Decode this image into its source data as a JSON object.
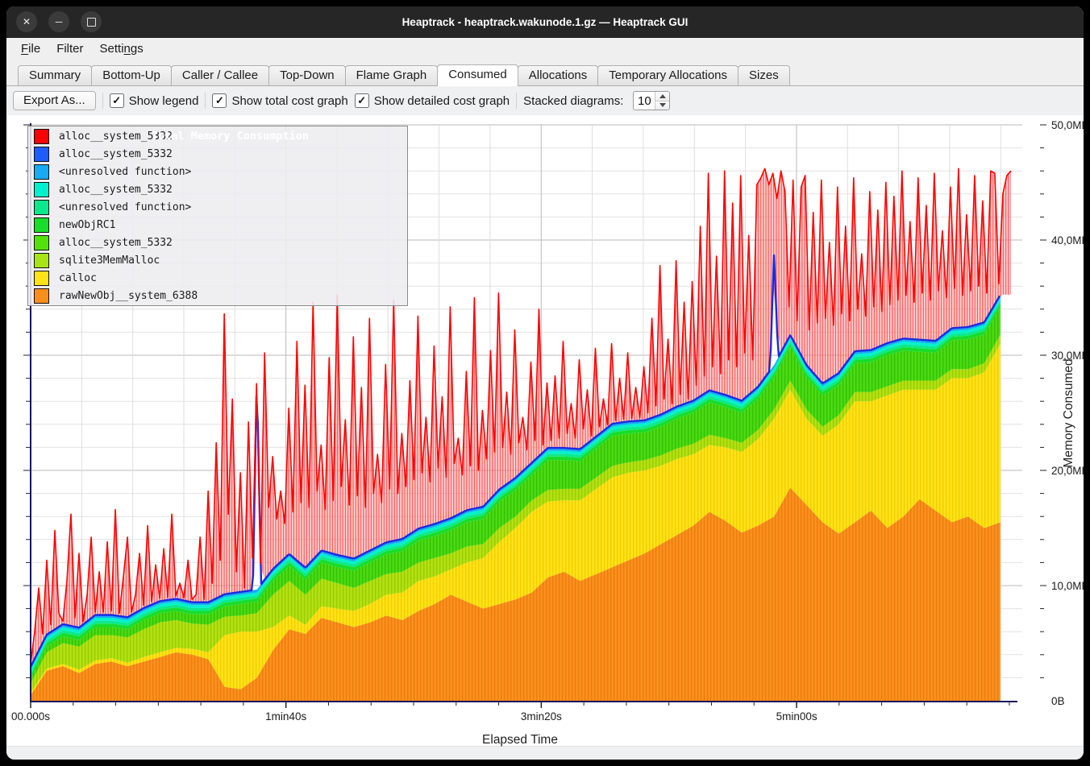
{
  "window": {
    "title": "Heaptrack - heaptrack.wakunode.1.gz — Heaptrack GUI",
    "controls": {
      "close": "✕",
      "minimize": "─",
      "maximize": ""
    }
  },
  "menu": {
    "items": [
      {
        "label": "File",
        "accel": 0
      },
      {
        "label": "Filter",
        "accel": -1
      },
      {
        "label": "Settings",
        "accel": 5
      }
    ]
  },
  "tabs": {
    "active": "Consumed",
    "items": [
      {
        "label": "Summary"
      },
      {
        "label": "Bottom-Up"
      },
      {
        "label": "Caller / Callee"
      },
      {
        "label": "Top-Down"
      },
      {
        "label": "Flame Graph"
      },
      {
        "label": "Consumed"
      },
      {
        "label": "Allocations"
      },
      {
        "label": "Temporary Allocations"
      },
      {
        "label": "Sizes"
      }
    ]
  },
  "toolbar": {
    "export_label": "Export As...",
    "checkboxes": [
      {
        "label": "Show legend",
        "checked": true
      },
      {
        "label": "Show total cost graph",
        "checked": true
      },
      {
        "label": "Show detailed cost graph",
        "checked": true
      }
    ],
    "stacked_label": "Stacked diagrams:",
    "stacked_value": "10"
  },
  "chart_data": {
    "type": "area",
    "xlabel": "Elapsed Time",
    "ylabel": "Memory Consumed",
    "x_max_s": 385,
    "y_max_mb": 50,
    "grid": true,
    "legend_position": "top-left",
    "x_ticks": [
      {
        "t": 0,
        "label": "00.000s"
      },
      {
        "t": 100,
        "label": "1min40s"
      },
      {
        "t": 200,
        "label": "3min20s"
      },
      {
        "t": 300,
        "label": "5min00s"
      }
    ],
    "y_ticks": [
      {
        "mb": 0,
        "label": "0B"
      },
      {
        "mb": 10,
        "label": "10,0MB"
      },
      {
        "mb": 20,
        "label": "20,0MB"
      },
      {
        "mb": 30,
        "label": "30,0MB"
      },
      {
        "mb": 40,
        "label": "40,0MB"
      },
      {
        "mb": 50,
        "label": "50,0MB"
      }
    ],
    "legend": [
      {
        "label": "Total Memory Consumption",
        "color": "#ff0000",
        "title": true
      },
      {
        "label": "alloc__system_5332",
        "color": "#1402e0"
      },
      {
        "label": "alloc__system_5332",
        "color": "#1e5cff"
      },
      {
        "label": "<unresolved function>",
        "color": "#17aaf5"
      },
      {
        "label": "alloc__system_5332",
        "color": "#00f2cc"
      },
      {
        "label": "<unresolved function>",
        "color": "#0ce98c"
      },
      {
        "label": "newObjRC1",
        "color": "#17dd2b"
      },
      {
        "label": "alloc__system_5332",
        "color": "#52e20b"
      },
      {
        "label": "sqlite3MemMalloc",
        "color": "#a8e414"
      },
      {
        "label": "calloc",
        "color": "#ffe316"
      },
      {
        "label": "rawNewObj__system_6388",
        "color": "#fb8e1a"
      }
    ],
    "stack": {
      "sample_interval_s": 6.33,
      "bands": [
        {
          "name": "rawNewObj__system_6388",
          "color": "#fb8e1a",
          "pattern": "horange",
          "values_mb": [
            0.5,
            2.6,
            3.0,
            2.4,
            3.2,
            3.4,
            3.0,
            3.4,
            3.8,
            4.2,
            4.0,
            3.6,
            1.2,
            1.0,
            2.0,
            4.4,
            6.2,
            5.8,
            7.2,
            6.8,
            6.4,
            6.8,
            7.4,
            7.0,
            7.8,
            8.4,
            9.2,
            8.6,
            8.0,
            8.4,
            8.8,
            9.4,
            10.7,
            11.2,
            10.4,
            11.0,
            11.6,
            12.2,
            12.8,
            13.6,
            14.4,
            15.2,
            16.4,
            15.6,
            14.6,
            15.2,
            16.0,
            18.5,
            17.0,
            15.5,
            14.5,
            15.5,
            16.5,
            15.0,
            16.0,
            17.5,
            16.5,
            15.5,
            16.0,
            15.0,
            15.5
          ]
        },
        {
          "name": "calloc",
          "color": "#ffe316",
          "pattern": "hyellow",
          "values_mb": [
            0.2,
            0.2,
            0.2,
            0.3,
            0.3,
            0.3,
            0.3,
            0.4,
            0.4,
            0.4,
            0.5,
            0.6,
            4.5,
            5.0,
            4.0,
            2.0,
            1.2,
            0.8,
            1.0,
            1.2,
            1.4,
            1.6,
            1.8,
            2.4,
            2.6,
            2.4,
            2.2,
            3.4,
            4.4,
            5.4,
            6.2,
            7.0,
            6.6,
            6.2,
            7.0,
            7.4,
            7.8,
            7.6,
            7.2,
            6.8,
            6.6,
            6.2,
            5.8,
            6.4,
            7.0,
            7.5,
            8.5,
            8.5,
            7.5,
            7.5,
            9.5,
            10.5,
            9.5,
            11.5,
            11.0,
            9.5,
            10.5,
            12.5,
            12.0,
            13.5,
            15.5
          ]
        },
        {
          "name": "sqlite3MemMalloc",
          "color": "#a8e414",
          "pattern": "hchart",
          "values_mb": [
            0.8,
            1.4,
            1.8,
            2.0,
            2.2,
            2.0,
            2.2,
            2.4,
            2.6,
            2.4,
            2.2,
            2.4,
            1.6,
            1.4,
            1.6,
            2.8,
            3.0,
            2.6,
            2.4,
            2.2,
            2.0,
            2.0,
            1.8,
            1.8,
            1.6,
            1.6,
            1.4,
            1.4,
            1.2,
            1.2,
            1.0,
            1.0,
            1.0,
            1.0,
            1.0,
            1.0,
            1.0,
            0.9,
            0.9,
            0.9,
            0.9,
            0.9,
            0.9,
            0.8,
            0.8,
            0.8,
            0.8,
            0.8,
            0.8,
            0.8,
            0.8,
            0.8,
            0.8,
            0.8,
            0.8,
            0.8,
            0.8,
            0.8,
            0.8,
            0.8,
            0.8
          ]
        },
        {
          "name": "alloc__system_5332",
          "color": "#52e20b",
          "pattern": "hgreen",
          "values_mb": [
            0.4,
            0.5,
            0.6,
            0.6,
            0.7,
            0.7,
            0.7,
            0.8,
            0.8,
            0.8,
            0.8,
            0.9,
            0.9,
            1.0,
            1.0,
            1.2,
            1.3,
            1.3,
            1.4,
            1.4,
            1.5,
            1.6,
            1.7,
            1.8,
            1.9,
            1.9,
            2.0,
            2.1,
            2.2,
            2.3,
            2.3,
            2.2,
            2.6,
            2.5,
            2.4,
            2.5,
            2.6,
            2.5,
            2.4,
            2.5,
            2.6,
            2.7,
            2.8,
            2.7,
            2.6,
            2.7,
            2.8,
            2.9,
            2.8,
            2.7,
            2.6,
            2.5,
            2.6,
            2.7,
            2.6,
            2.5,
            2.4,
            2.5,
            2.6,
            2.5,
            2.4
          ]
        }
      ],
      "thin_bands": [
        {
          "name": "newObjRC1",
          "color": "#17dd2b",
          "thickness_mb": 0.3
        },
        {
          "name": "<unresolved function>",
          "color": "#0ce98c",
          "thickness_mb": 0.25
        },
        {
          "name": "alloc__system_5332",
          "color": "#00f2cc",
          "thickness_mb": 0.25
        },
        {
          "name": "<unresolved function>",
          "color": "#17aaf5",
          "thickness_mb": 0.25
        }
      ],
      "top_line": {
        "name": "alloc__system_5332",
        "color": "#1b2be0",
        "spikes": [
          {
            "i": 14,
            "mb": 29.0
          },
          {
            "i": 46,
            "mb": 39.0
          }
        ]
      }
    },
    "total_series": {
      "name": "Total Memory Consumption",
      "color": "#ff0000",
      "sample_interval_s": 1.58,
      "values_mb": [
        3.2,
        6.0,
        9.8,
        5.8,
        12.2,
        6.6,
        14.8,
        7.6,
        6.2,
        10.4,
        16.2,
        7.2,
        12.8,
        6.6,
        9.2,
        14.2,
        7.0,
        11.2,
        6.6,
        13.8,
        7.8,
        16.6,
        7.0,
        10.8,
        14.2,
        7.4,
        9.2,
        12.8,
        7.8,
        15.2,
        8.2,
        11.8,
        7.6,
        13.2,
        9.0,
        16.2,
        8.0,
        10.2,
        7.4,
        12.2,
        8.4,
        9.2,
        14.2,
        8.2,
        18.2,
        10.2,
        22.4,
        12.2,
        33.6,
        16.2,
        26.2,
        11.2,
        19.8,
        9.8,
        24.2,
        12.4,
        17.2,
        9.4,
        30.2,
        16.8,
        21.2,
        15.8,
        18.2,
        15.4,
        25.4,
        16.4,
        31.2,
        17.2,
        27.4,
        16.8,
        34.6,
        18.2,
        22.2,
        16.6,
        29.8,
        17.4,
        35.2,
        18.6,
        24.4,
        17.0,
        31.6,
        17.8,
        27.2,
        16.8,
        33.2,
        18.0,
        21.4,
        17.2,
        29.2,
        18.4,
        34.8,
        18.0,
        23.2,
        18.6,
        27.8,
        19.2,
        33.4,
        19.8,
        24.6,
        19.0,
        30.8,
        20.2,
        26.4,
        19.4,
        34.2,
        20.6,
        22.8,
        19.6,
        28.6,
        20.4,
        35.0,
        20.0,
        25.2,
        21.0,
        30.4,
        21.6,
        35.4,
        22.0,
        26.8,
        21.4,
        32.2,
        22.4,
        24.6,
        21.8,
        29.4,
        22.6,
        34.0,
        22.2,
        27.6,
        22.6,
        28.2,
        22.8,
        31.2,
        23.2,
        25.8,
        22.8,
        29.6,
        23.6,
        27.0,
        23.0,
        30.6,
        23.8,
        26.2,
        23.2,
        31.0,
        24.0,
        28.0,
        23.6,
        30.2,
        24.2,
        27.2,
        23.8,
        29.0,
        25.0,
        33.2,
        25.6,
        37.8,
        26.2,
        31.4,
        25.8,
        38.2,
        26.6,
        34.6,
        26.2,
        36.4,
        27.4,
        41.2,
        28.2,
        45.8,
        29.0,
        38.6,
        28.4,
        46.0,
        29.6,
        43.2,
        29.0,
        45.6,
        30.2,
        40.4,
        29.6,
        44.8,
        45.4,
        46.2,
        44.8,
        45.8,
        43.6,
        46.0,
        44.2,
        34.2,
        45.2,
        33.0,
        44.6,
        45.6,
        32.2,
        42.4,
        32.8,
        45.2,
        33.2,
        39.8,
        32.6,
        44.6,
        33.6,
        41.2,
        33.0,
        45.4,
        34.0,
        38.8,
        33.4,
        44.2,
        34.2,
        42.6,
        33.8,
        45.0,
        34.4,
        43.8,
        34.8,
        46.0,
        35.2,
        41.6,
        34.6,
        45.4,
        35.4,
        43.0,
        34.8,
        45.8,
        35.6,
        40.8,
        35.0,
        44.6,
        35.8,
        46.2,
        35.2,
        42.2,
        35.6,
        45.6,
        36.0,
        43.4,
        35.4,
        46.0,
        45.8,
        36.2,
        44.0,
        45.6,
        46.0
      ]
    }
  }
}
